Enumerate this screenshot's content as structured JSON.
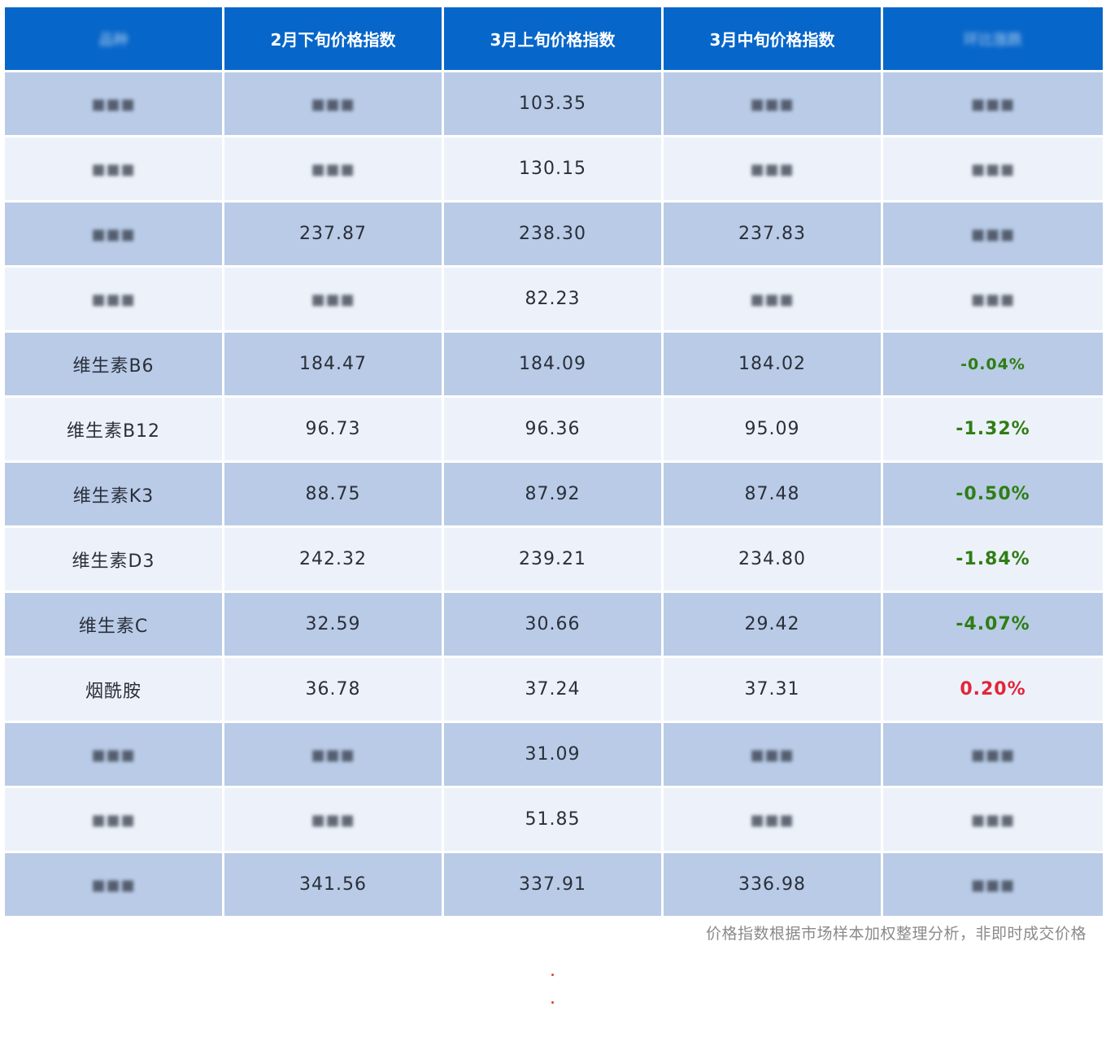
{
  "table": {
    "headers": [
      "",
      "2月下旬价格指数",
      "3月上旬价格指数",
      "3月中旬价格指数",
      ""
    ],
    "rows": [
      {
        "name": "",
        "c1": "",
        "c2": "103.35",
        "c3": "",
        "chg": "",
        "dir": ""
      },
      {
        "name": "",
        "c1": "",
        "c2": "130.15",
        "c3": "",
        "chg": "",
        "dir": ""
      },
      {
        "name": "",
        "c1": "237.87",
        "c2": "238.30",
        "c3": "237.83",
        "chg": "",
        "dir": ""
      },
      {
        "name": "",
        "c1": "",
        "c2": "82.23",
        "c3": "",
        "chg": "",
        "dir": ""
      },
      {
        "name": "维生素B6",
        "c1": "184.47",
        "c2": "184.09",
        "c3": "184.02",
        "chg": "-0.04%",
        "dir": "down"
      },
      {
        "name": "维生素B12",
        "c1": "96.73",
        "c2": "96.36",
        "c3": "95.09",
        "chg": "-1.32%",
        "dir": "down"
      },
      {
        "name": "维生素K3",
        "c1": "88.75",
        "c2": "87.92",
        "c3": "87.48",
        "chg": "-0.50%",
        "dir": "down"
      },
      {
        "name": "维生素D3",
        "c1": "242.32",
        "c2": "239.21",
        "c3": "234.80",
        "chg": "-1.84%",
        "dir": "down"
      },
      {
        "name": "维生素C",
        "c1": "32.59",
        "c2": "30.66",
        "c3": "29.42",
        "chg": "-4.07%",
        "dir": "down"
      },
      {
        "name": "烟酰胺",
        "c1": "36.78",
        "c2": "37.24",
        "c3": "37.31",
        "chg": "0.20%",
        "dir": "up"
      },
      {
        "name": "",
        "c1": "",
        "c2": "31.09",
        "c3": "",
        "chg": "",
        "dir": ""
      },
      {
        "name": "",
        "c1": "",
        "c2": "51.85",
        "c3": "",
        "chg": "",
        "dir": ""
      },
      {
        "name": "",
        "c1": "341.56",
        "c2": "337.91",
        "c3": "336.98",
        "chg": "",
        "dir": ""
      }
    ]
  },
  "caption": "价格指数根据市场样本加权整理分析，非即时成交价格",
  "colors": {
    "header_bg": "#0766c9",
    "row_odd": "#b9cbe6",
    "row_even": "#edf2fa",
    "down": "#2f7d14",
    "up": "#e0263a"
  }
}
